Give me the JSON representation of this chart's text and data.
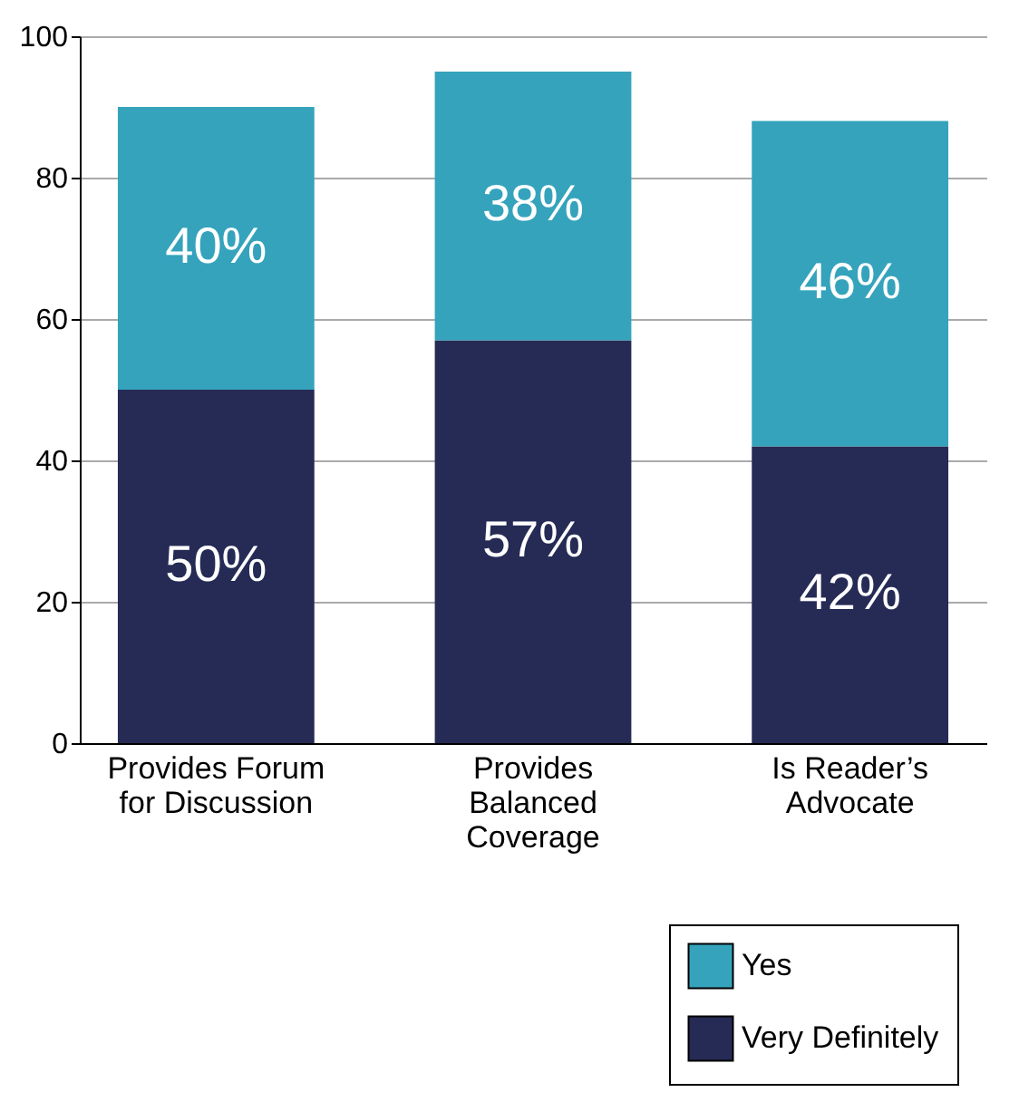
{
  "chart_data": {
    "type": "bar",
    "stacked": true,
    "categories": [
      "Provides Forum for Discussion",
      "Provides Balanced Coverage",
      "Is Reader’s Advocate"
    ],
    "series": [
      {
        "name": "Very Definitely",
        "color": "#252b55",
        "values": [
          50,
          57,
          42
        ],
        "value_labels": [
          "50%",
          "57%",
          "42%"
        ]
      },
      {
        "name": "Yes",
        "color": "#35a3bc",
        "values": [
          40,
          38,
          46
        ],
        "value_labels": [
          "40%",
          "38%",
          "46%"
        ]
      }
    ],
    "ylim": [
      0,
      100
    ],
    "yticks": [
      0,
      20,
      40,
      60,
      80,
      100
    ],
    "grid": "y",
    "legend": "bottom right"
  }
}
